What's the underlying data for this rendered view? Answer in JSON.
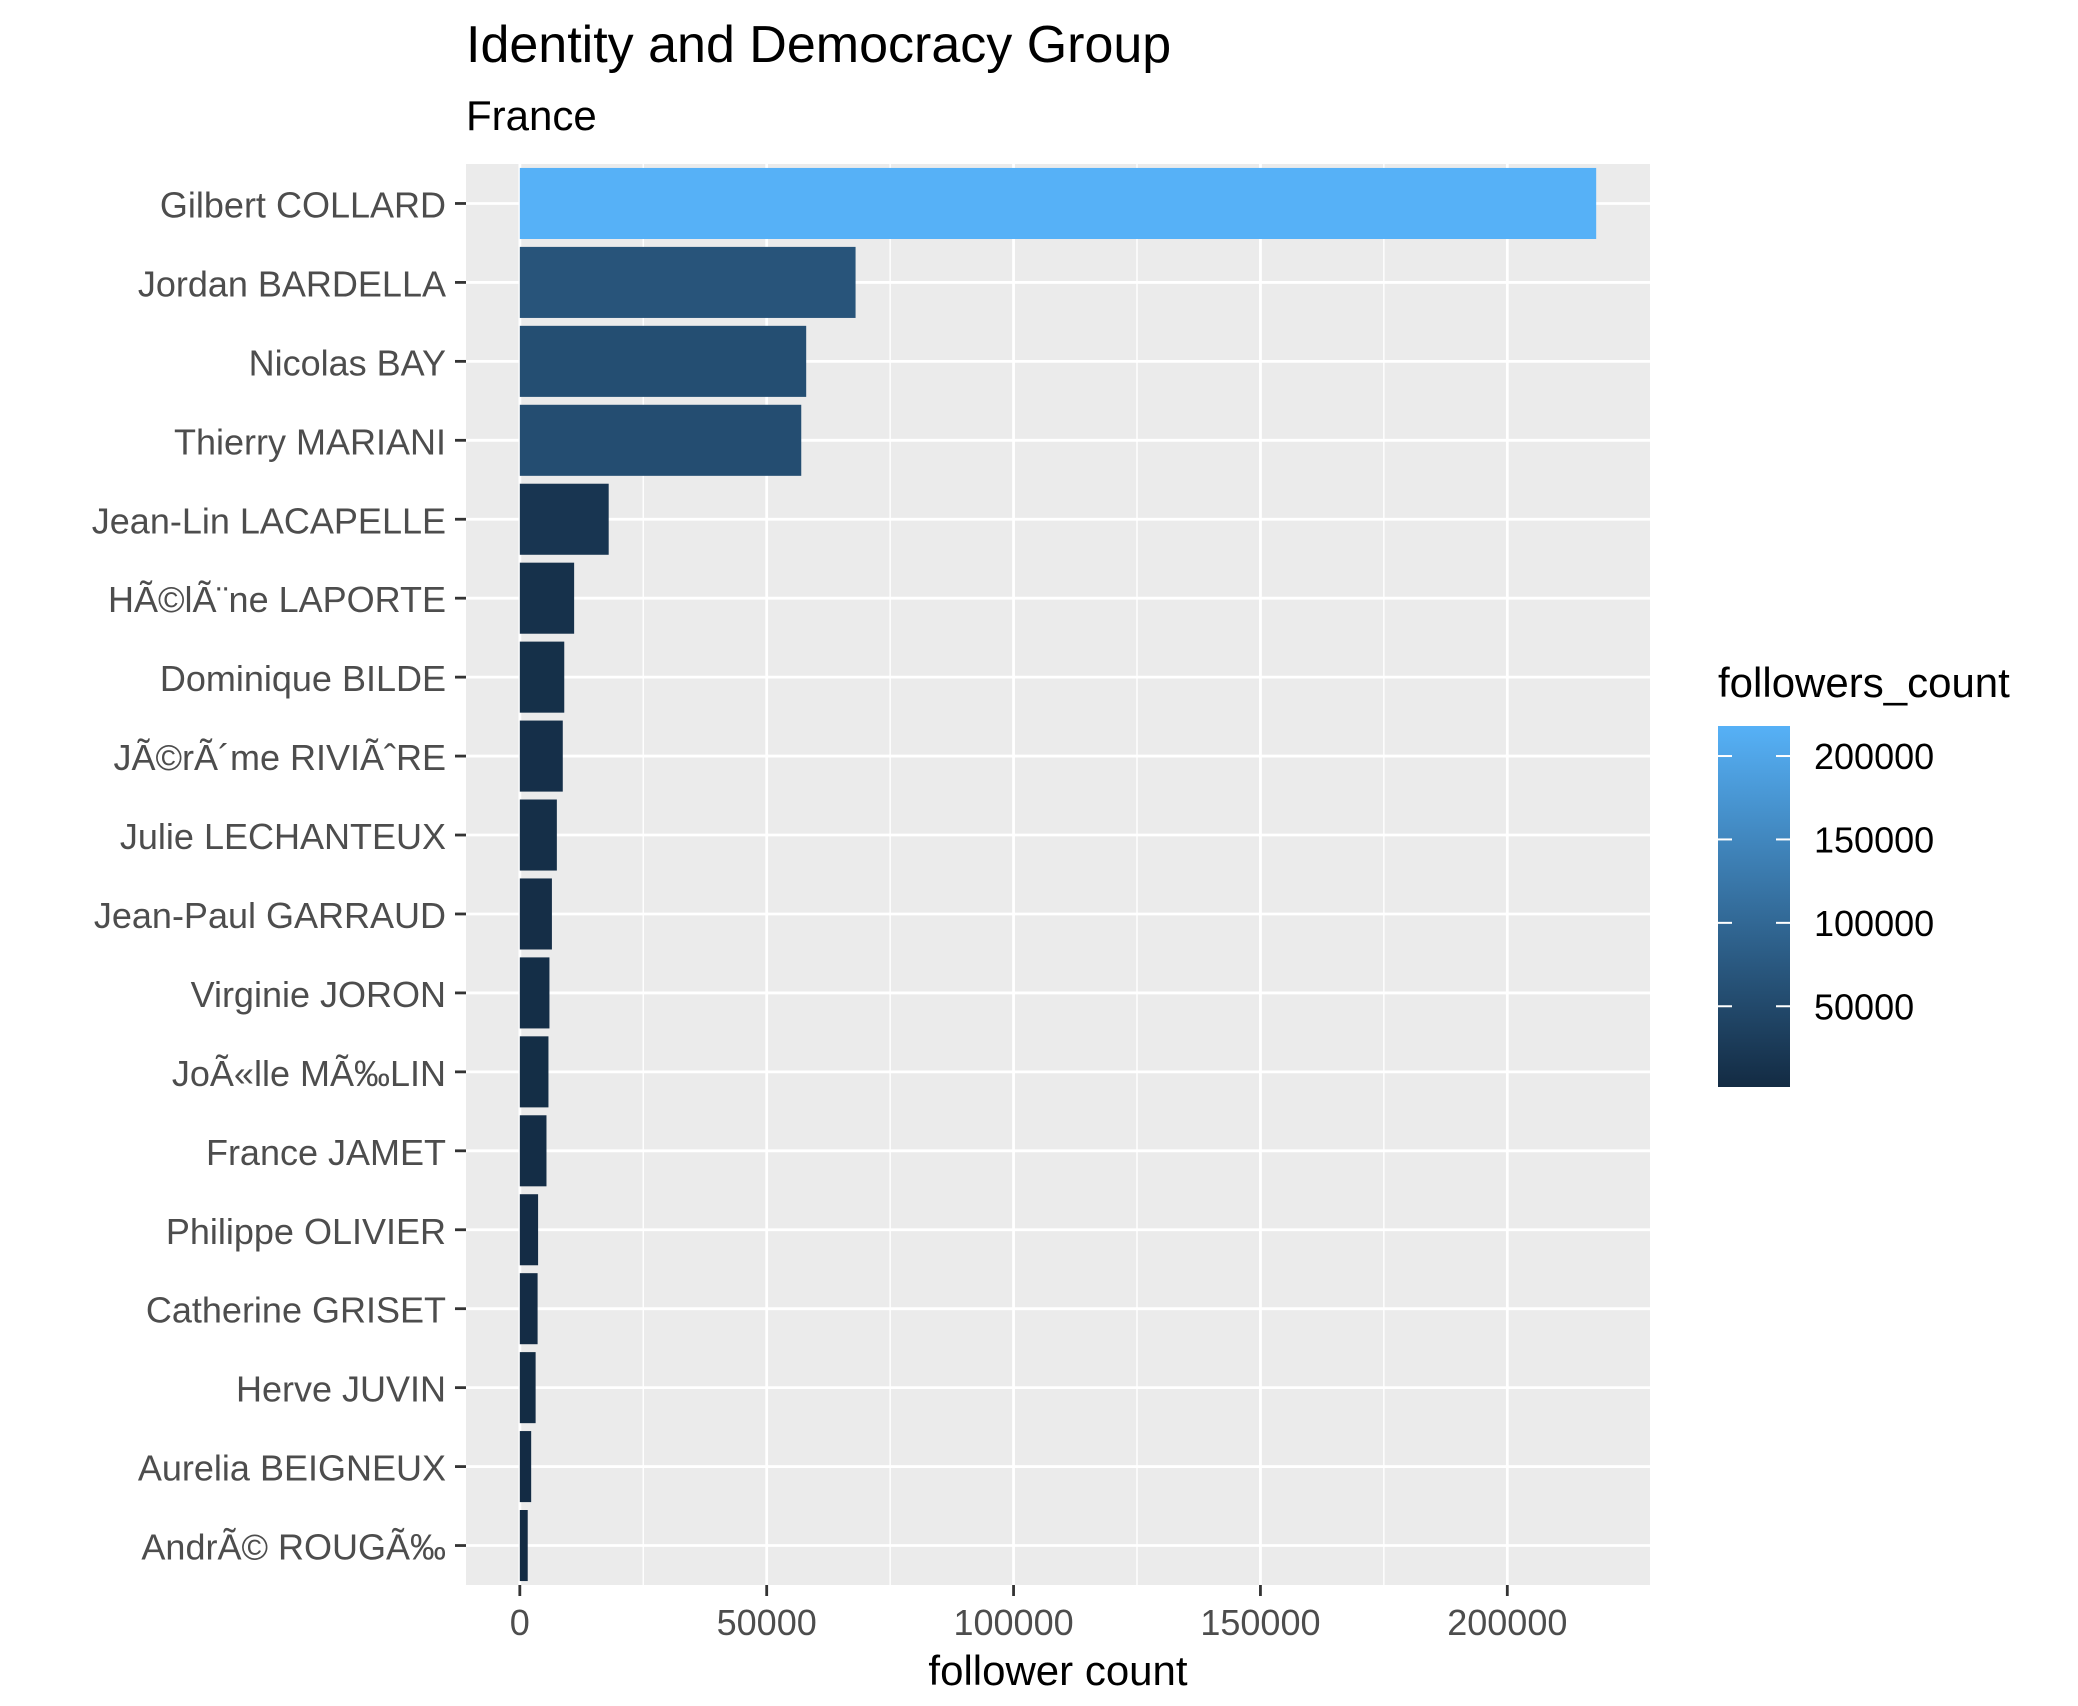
{
  "chart_data": {
    "type": "bar",
    "orientation": "horizontal",
    "title": "Identity and Democracy Group",
    "subtitle": "France",
    "xlabel": "follower count",
    "ylabel": "",
    "xlim": [
      -10900,
      228900
    ],
    "x_ticks": [
      0,
      50000,
      100000,
      150000,
      200000
    ],
    "x_tick_labels": [
      "0",
      "50000",
      "100000",
      "150000",
      "200000"
    ],
    "grid": true,
    "categories": [
      "Gilbert COLLARD",
      "Jordan BARDELLA",
      "Nicolas BAY",
      "Thierry MARIANI",
      "Jean-Lin LACAPELLE",
      "HÃ©lÃ¨ne LAPORTE",
      "Dominique BILDE",
      "JÃ©rÃ´me RIVIÃˆRE",
      "Julie LECHANTEUX",
      "Jean-Paul GARRAUD",
      "Virginie JORON",
      "JoÃ«lle MÃ‰LIN",
      "France JAMET",
      "Philippe OLIVIER",
      "Catherine GRISET",
      "Herve JUVIN",
      "Aurelia BEIGNEUX",
      "AndrÃ© ROUGÃ‰"
    ],
    "values": [
      218000,
      68000,
      58000,
      57000,
      18000,
      11000,
      9000,
      8700,
      7500,
      6500,
      6000,
      5800,
      5400,
      3700,
      3600,
      3200,
      2300,
      1600
    ],
    "legend": {
      "title": "followers_count",
      "placement": "right",
      "min": 1600,
      "max": 218000,
      "ticks": [
        200000,
        150000,
        100000,
        50000
      ],
      "tick_labels": [
        "200000",
        "150000",
        "100000",
        "50000"
      ],
      "color_low": "#132b43",
      "color_high": "#56b1f7"
    },
    "colors": {
      "panel_background": "#ebebeb",
      "grid_line": "#ffffff"
    }
  }
}
